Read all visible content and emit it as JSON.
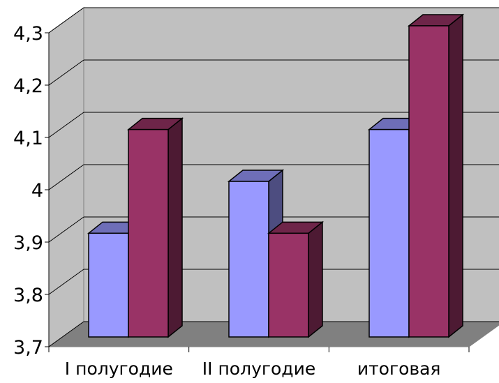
{
  "chart_data": {
    "type": "bar",
    "style": "3d-clustered-column",
    "categories": [
      "I полугодие",
      "II полугодие",
      "итоговая"
    ],
    "series": [
      {
        "values": [
          3.9,
          4.0,
          4.1
        ],
        "color": "#9999ff"
      },
      {
        "values": [
          4.1,
          3.9,
          4.3
        ],
        "color": "#993366"
      }
    ],
    "ylim": [
      3.7,
      4.3
    ],
    "yticks": [
      "3,7",
      "3,8",
      "3,9",
      "4",
      "4,1",
      "4,2",
      "4,3"
    ],
    "grid": true,
    "legend": "none",
    "wall_color": "#c0c0c0",
    "floor_color": "#808080"
  }
}
